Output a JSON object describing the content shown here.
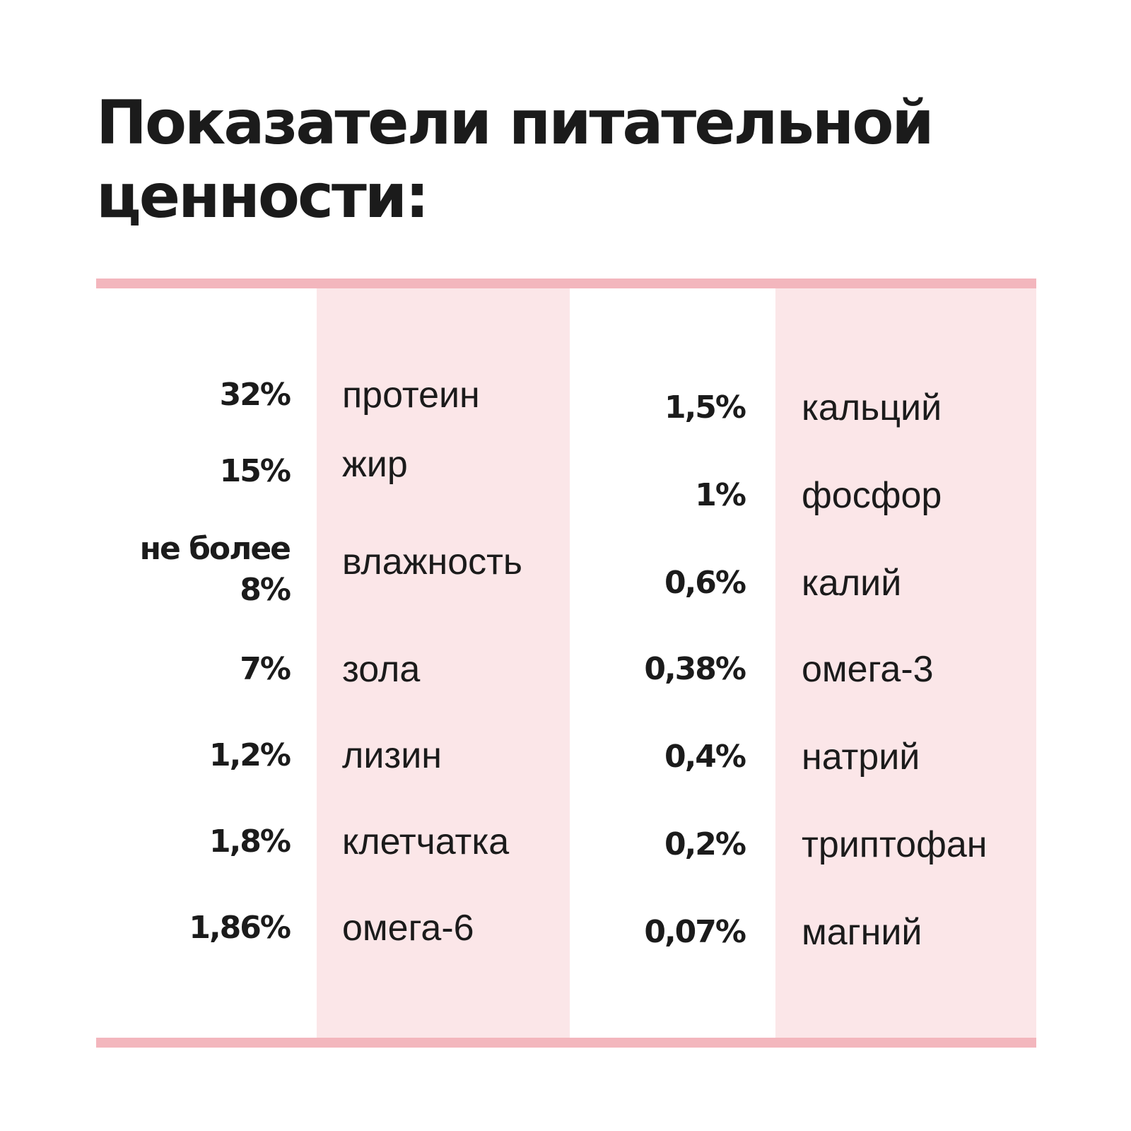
{
  "title": {
    "line1": "Показатели питательной",
    "line2": "ценности:"
  },
  "colors": {
    "rule": "#f3b6bd",
    "band": "#fbe6e8",
    "text": "#1b1b1b"
  },
  "left_column": [
    {
      "value": "32%",
      "name": "протеин"
    },
    {
      "value": "15%",
      "name": "жир"
    },
    {
      "value": "не более 8%",
      "name": "влажность"
    },
    {
      "value": "7%",
      "name": "зола"
    },
    {
      "value": "1,2%",
      "name": "лизин"
    },
    {
      "value": "1,8%",
      "name": "клетчатка"
    },
    {
      "value": "1,86%",
      "name": "омега-6"
    }
  ],
  "right_column": [
    {
      "value": "1,5%",
      "name": "кальций"
    },
    {
      "value": "1%",
      "name": "фосфор"
    },
    {
      "value": "0,6%",
      "name": "калий"
    },
    {
      "value": "0,38%",
      "name": "омега-3"
    },
    {
      "value": "0,4%",
      "name": "натрий"
    },
    {
      "value": "0,2%",
      "name": "триптофан"
    },
    {
      "value": "0,07%",
      "name": "магний"
    }
  ]
}
